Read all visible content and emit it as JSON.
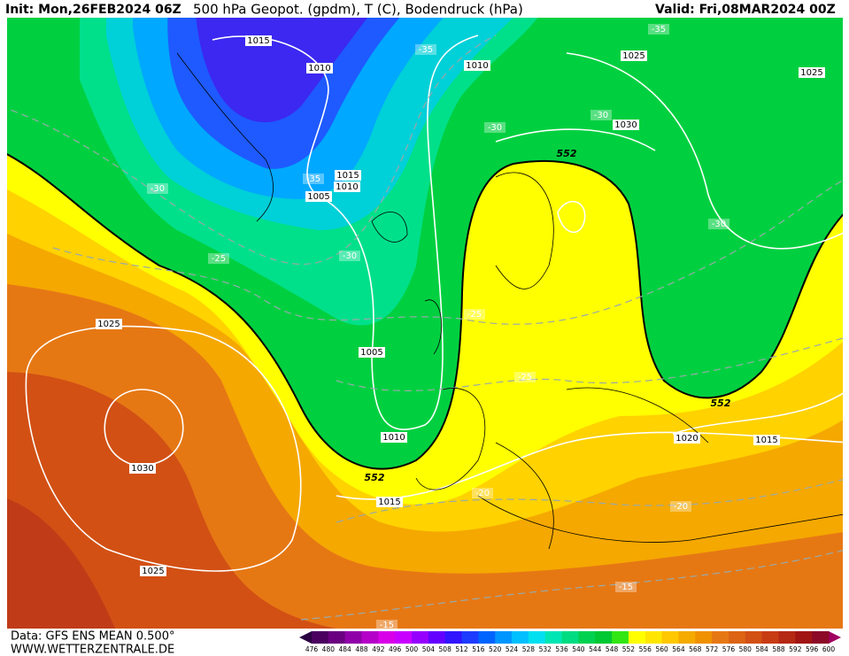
{
  "header": {
    "init": "Init: Mon,26FEB2024 06Z",
    "title": "500 hPa Geopot. (gpdm), T (C), Bodendruck (hPa)",
    "valid": "Valid: Fri,08MAR2024 00Z"
  },
  "map_labels": [
    "1015",
    "1010",
    "1010",
    "-35",
    "-35",
    "1025",
    "1025",
    "-30",
    "1030",
    "-30",
    "552",
    "-30",
    "-35",
    "1015",
    "1010",
    "1005",
    "-25",
    "-30",
    "-30",
    "-25",
    "1025",
    "1005",
    "-25",
    "552",
    "1010",
    "1020",
    "1015",
    "1030",
    "552",
    "-20",
    "1015",
    "-20",
    "1025",
    "-15",
    "-15"
  ],
  "footer": {
    "data": "Data: GFS ENS MEAN 0.500°",
    "url": "WWW.WETTERZENTRALE.DE"
  },
  "colorbar": {
    "labels": [
      476,
      480,
      484,
      488,
      492,
      496,
      500,
      504,
      508,
      512,
      516,
      520,
      524,
      528,
      532,
      536,
      540,
      544,
      548,
      552,
      556,
      560,
      564,
      568,
      572,
      576,
      580,
      584,
      588,
      592,
      596,
      600
    ],
    "colors": [
      "#4b0060",
      "#6a0080",
      "#9000a8",
      "#b400c8",
      "#d800e8",
      "#c800ff",
      "#9600ff",
      "#6400ff",
      "#3214ff",
      "#1e3cff",
      "#0064ff",
      "#0096ff",
      "#00c0ff",
      "#00e0f0",
      "#00e6b4",
      "#00dc82",
      "#00d250",
      "#00c832",
      "#32e614",
      "#ffff00",
      "#ffe600",
      "#ffc800",
      "#f5aa00",
      "#f09100",
      "#e67814",
      "#dc6414",
      "#d25014",
      "#c83c14",
      "#b42814",
      "#a01414",
      "#8c0a28"
    ]
  }
}
